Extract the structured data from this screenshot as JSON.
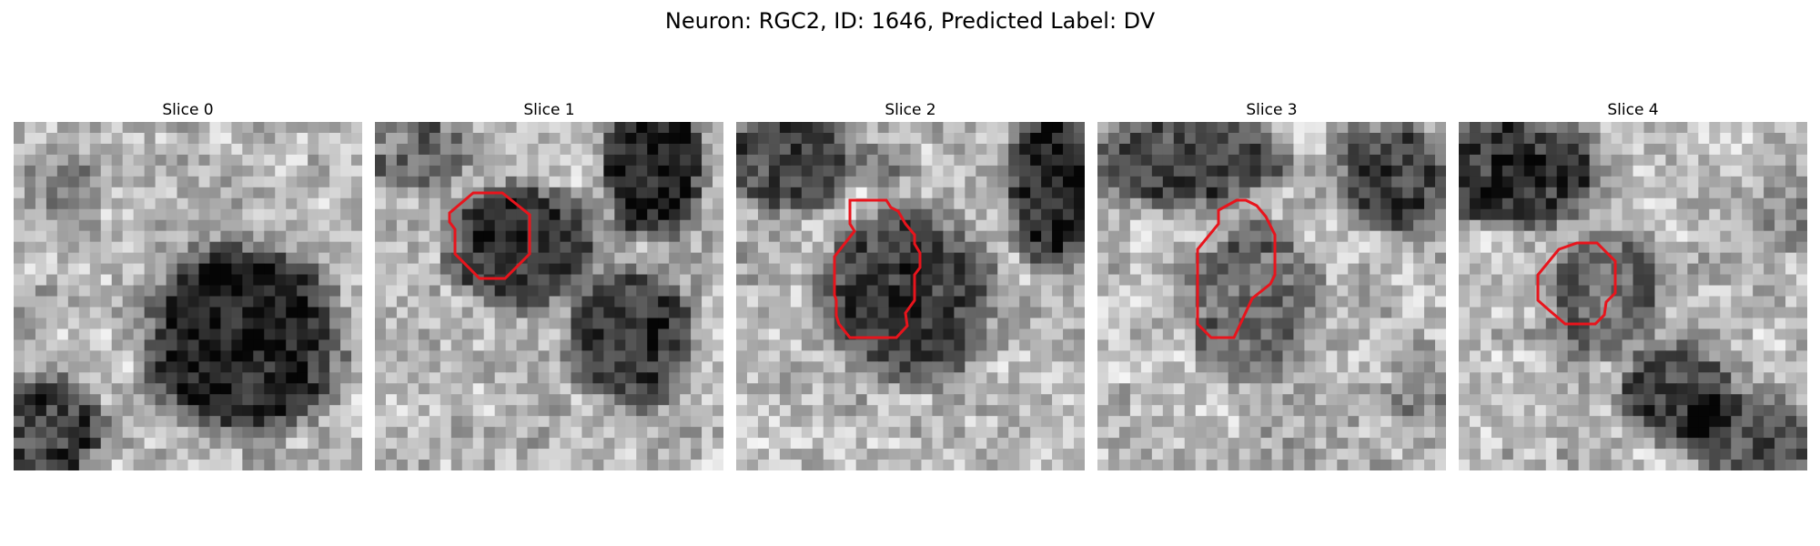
{
  "figure": {
    "title": "Neuron: RGC2, ID: 1646, Predicted Label: DV"
  },
  "panels": [
    {
      "title": "Slice 0",
      "has_outline": false,
      "dark_blobs": [
        "bottom-right",
        "bottom-left"
      ]
    },
    {
      "title": "Slice 1",
      "has_outline": true,
      "dark_blobs": [
        "center",
        "right",
        "top-right",
        "top-left"
      ]
    },
    {
      "title": "Slice 2",
      "has_outline": true,
      "dark_blobs": [
        "center",
        "top-left",
        "top-right"
      ]
    },
    {
      "title": "Slice 3",
      "has_outline": true,
      "dark_blobs": [
        "top",
        "center",
        "top-right"
      ]
    },
    {
      "title": "Slice 4",
      "has_outline": true,
      "dark_blobs": [
        "top-left",
        "center",
        "bottom-right"
      ]
    }
  ],
  "style": {
    "outline_color": "#e8141c",
    "colormap": "grayscale"
  }
}
